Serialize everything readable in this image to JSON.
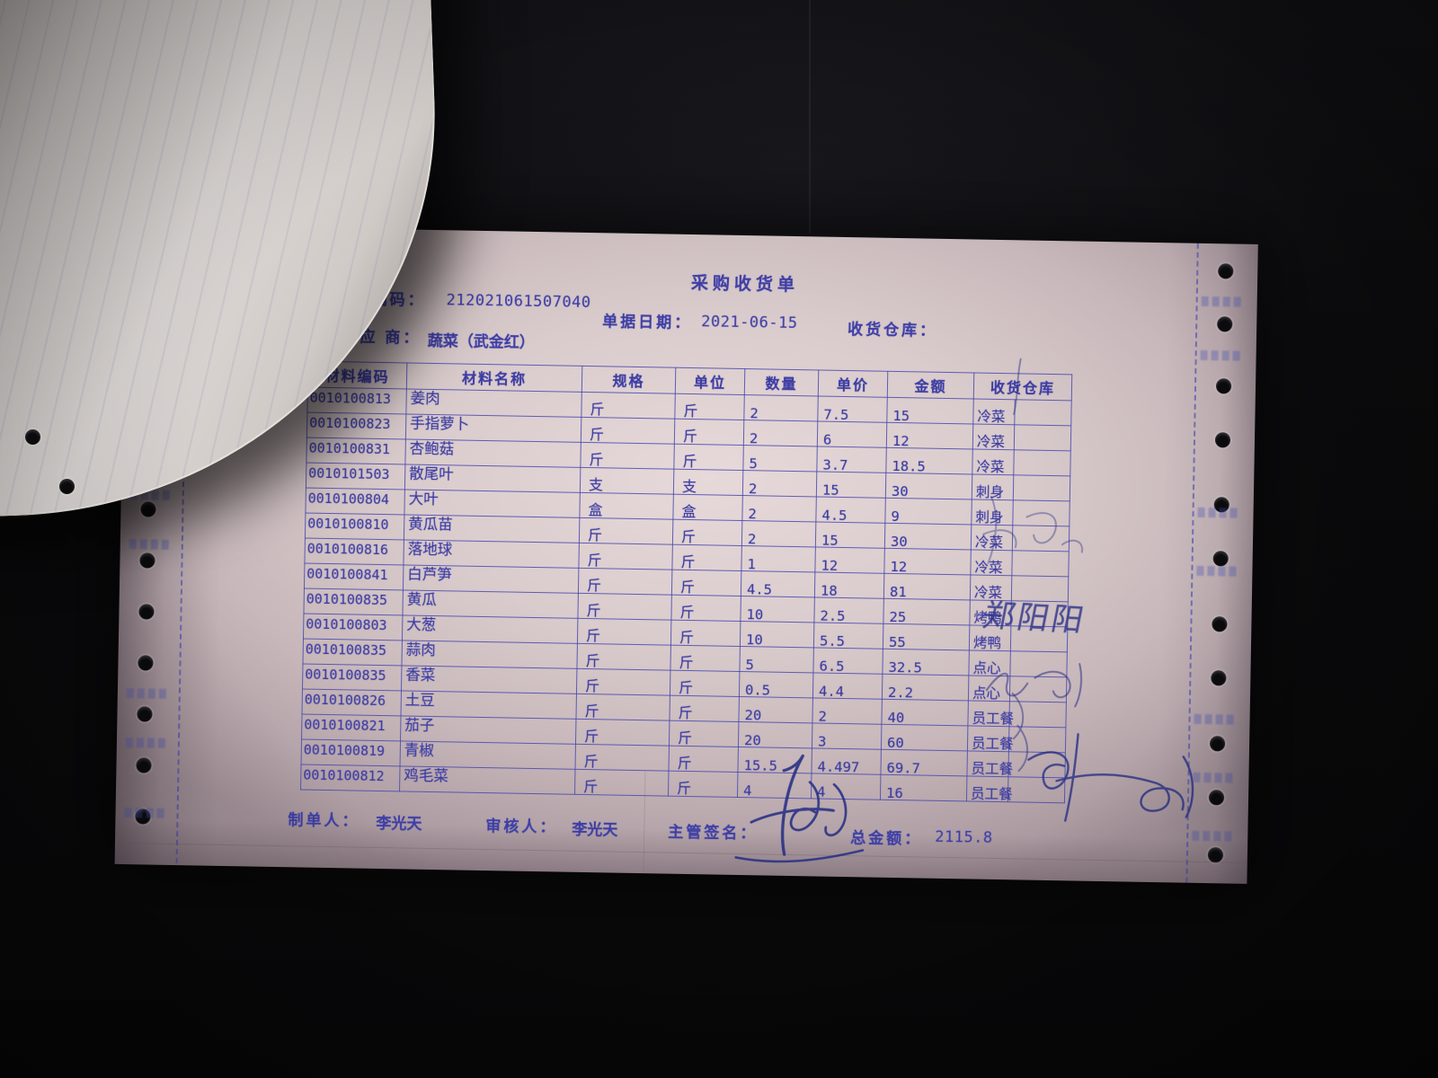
{
  "photo": {
    "backdrop_color": "#0a0a0c",
    "paper_color": "#dacccc",
    "ink_color": "#3e3ea6",
    "pen_color": "#272e84"
  },
  "document": {
    "title": "采购收货单",
    "fields": {
      "doc_code_label": "单据编码：",
      "doc_code": "212021061507040",
      "doc_date_label": "单据日期：",
      "doc_date": "2021-06-15",
      "warehouse_label": "收货仓库：",
      "supplier_label": "供 应 商：",
      "supplier": "蔬菜（武金红）"
    },
    "table": {
      "headers": [
        "材料编码",
        "材料名称",
        "规格",
        "单位",
        "数量",
        "单价",
        "金额",
        "收货仓库"
      ],
      "rows": [
        [
          "0010100813",
          "姜肉",
          "斤",
          "斤",
          "2",
          "7.5",
          "15",
          "冷菜"
        ],
        [
          "0010100823",
          "手指萝卜",
          "斤",
          "斤",
          "2",
          "6",
          "12",
          "冷菜"
        ],
        [
          "0010100831",
          "杏鲍菇",
          "斤",
          "斤",
          "5",
          "3.7",
          "18.5",
          "冷菜"
        ],
        [
          "0010101503",
          "散尾叶",
          "支",
          "支",
          "2",
          "15",
          "30",
          "刺身"
        ],
        [
          "0010100804",
          "大叶",
          "盒",
          "盒",
          "2",
          "4.5",
          "9",
          "刺身"
        ],
        [
          "0010100810",
          "黄瓜苗",
          "斤",
          "斤",
          "2",
          "15",
          "30",
          "冷菜"
        ],
        [
          "0010100816",
          "落地球",
          "斤",
          "斤",
          "1",
          "12",
          "12",
          "冷菜"
        ],
        [
          "0010100841",
          "白芦笋",
          "斤",
          "斤",
          "4.5",
          "18",
          "81",
          "冷菜"
        ],
        [
          "0010100835",
          "黄瓜",
          "斤",
          "斤",
          "10",
          "2.5",
          "25",
          "烤鸭"
        ],
        [
          "0010100803",
          "大葱",
          "斤",
          "斤",
          "10",
          "5.5",
          "55",
          "烤鸭"
        ],
        [
          "0010100835",
          "蒜肉",
          "斤",
          "斤",
          "5",
          "6.5",
          "32.5",
          "点心"
        ],
        [
          "0010100835",
          "香菜",
          "斤",
          "斤",
          "0.5",
          "4.4",
          "2.2",
          "点心"
        ],
        [
          "0010100826",
          "土豆",
          "斤",
          "斤",
          "20",
          "2",
          "40",
          "员工餐"
        ],
        [
          "0010100821",
          "茄子",
          "斤",
          "斤",
          "20",
          "3",
          "60",
          "员工餐"
        ],
        [
          "0010100819",
          "青椒",
          "斤",
          "斤",
          "15.5",
          "4.497",
          "69.7",
          "员工餐"
        ],
        [
          "0010100812",
          "鸡毛菜",
          "斤",
          "斤",
          "4",
          "4",
          "16",
          "员工餐"
        ]
      ]
    },
    "footer": {
      "maker_label": "制单人：",
      "maker": "李光天",
      "auditor_label": "审核人：",
      "auditor": "李光天",
      "sign_label": "主管签名：",
      "total_label": "总金额：",
      "total": "2115.8"
    },
    "annotations": {
      "handwritten_name": "郑阳阳"
    }
  }
}
